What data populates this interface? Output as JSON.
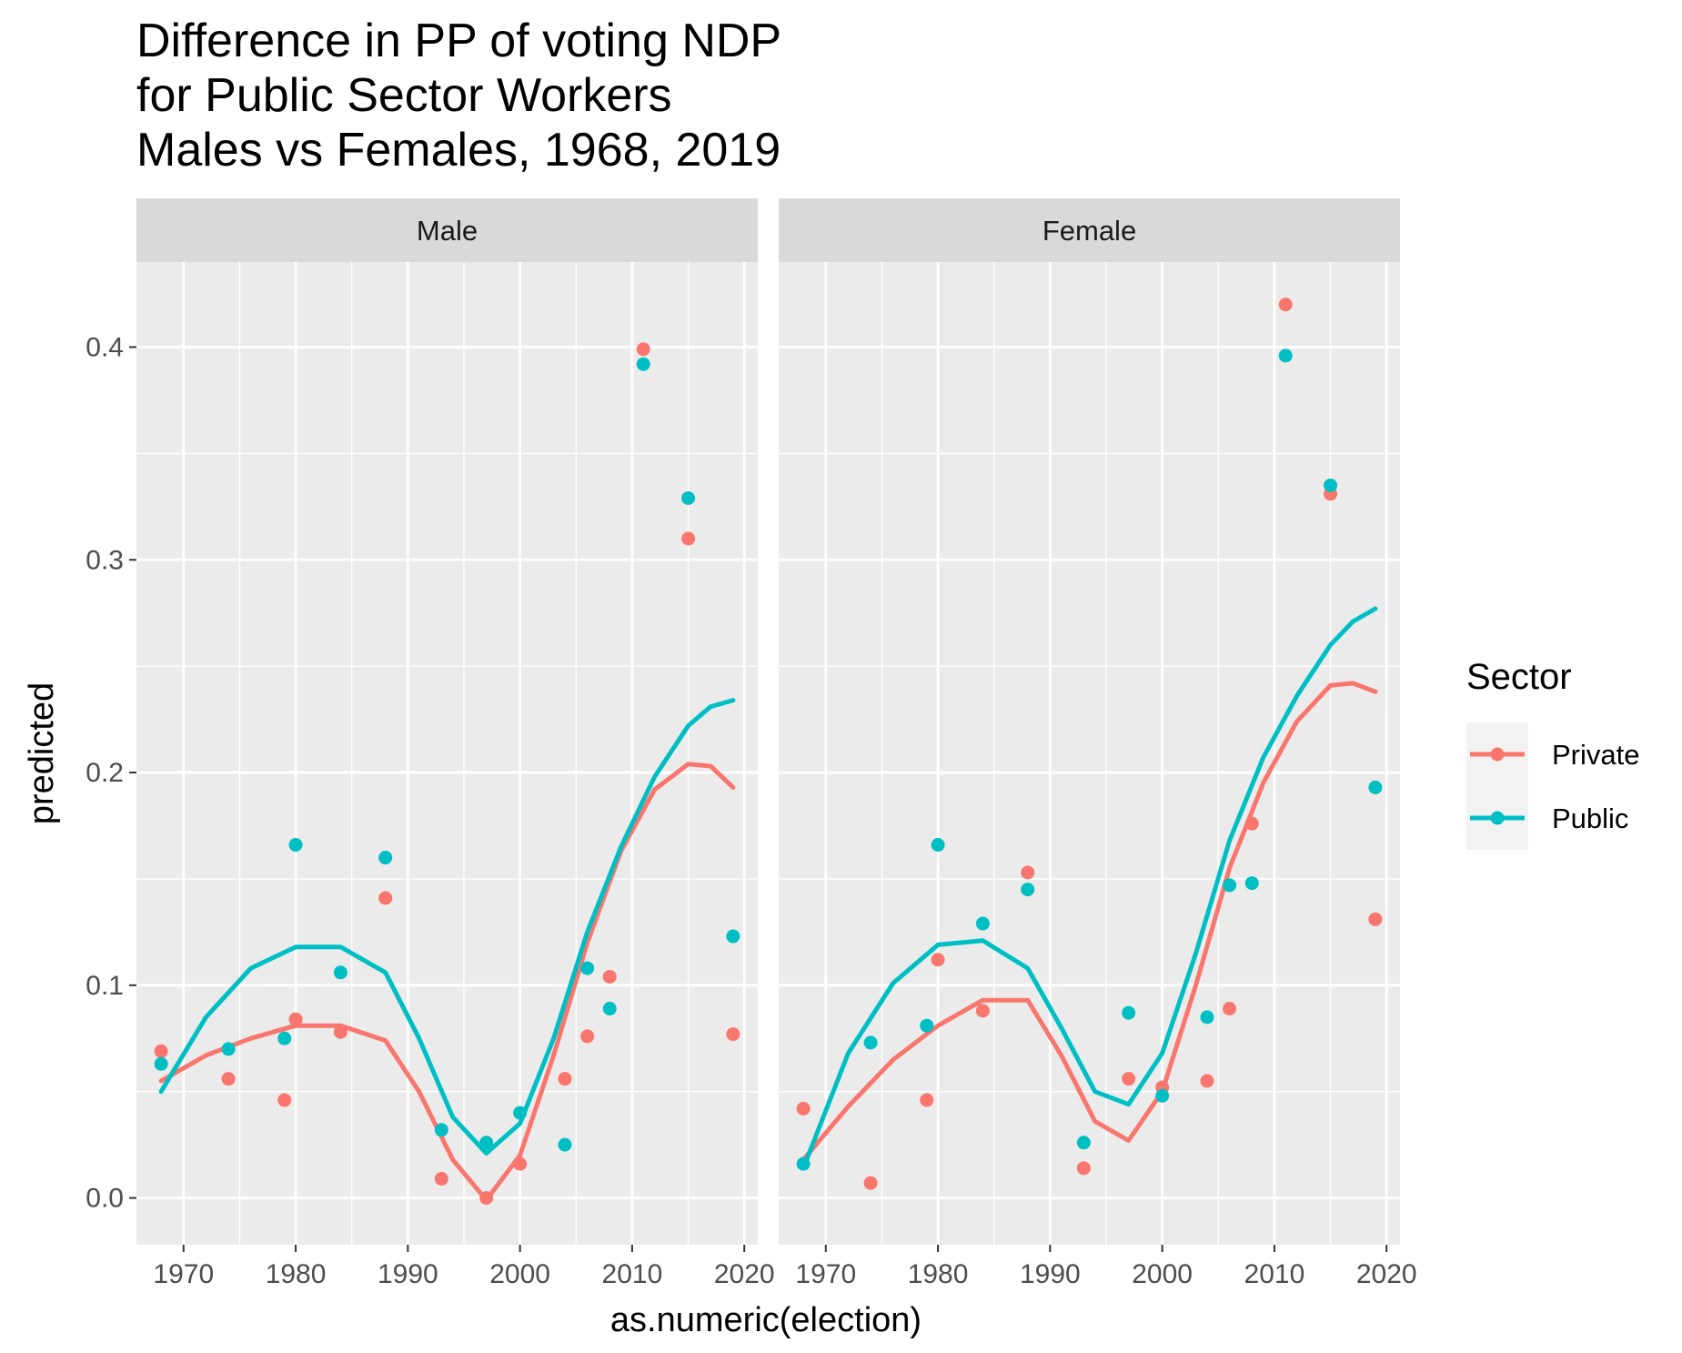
{
  "chart_data": {
    "type": "scatter",
    "title_lines": [
      "Difference in PP of voting NDP",
      "for Public Sector Workers",
      "Males vs Females, 1968, 2019"
    ],
    "xlabel": "as.numeric(election)",
    "ylabel": "predicted",
    "xlim": [
      1965.8,
      2021.2
    ],
    "ylim": [
      -0.022,
      0.44
    ],
    "x_ticks": [
      1970,
      1980,
      1990,
      2000,
      2010,
      2020
    ],
    "x_tick_labels": [
      "1970",
      "1980",
      "1990",
      "2000",
      "2010",
      "2020"
    ],
    "y_ticks": [
      0.0,
      0.1,
      0.2,
      0.3,
      0.4
    ],
    "y_tick_labels": [
      "0.0",
      "0.1",
      "0.2",
      "0.3",
      "0.4"
    ],
    "grid": true,
    "legend": {
      "title": "Sector",
      "position": "right",
      "entries": [
        "Private",
        "Public"
      ]
    },
    "colors": {
      "Private": "#F8766D",
      "Public": "#00BFC4"
    },
    "facets": [
      {
        "label": "Male",
        "series": [
          {
            "name": "Private",
            "points": [
              [
                1968,
                0.069
              ],
              [
                1974,
                0.056
              ],
              [
                1979,
                0.046
              ],
              [
                1980,
                0.084
              ],
              [
                1984,
                0.078
              ],
              [
                1988,
                0.141
              ],
              [
                1993,
                0.009
              ],
              [
                1997,
                0.0
              ],
              [
                2000,
                0.016
              ],
              [
                2004,
                0.056
              ],
              [
                2006,
                0.076
              ],
              [
                2008,
                0.104
              ],
              [
                2011,
                0.399
              ],
              [
                2015,
                0.31
              ],
              [
                2019,
                0.077
              ]
            ],
            "smooth": [
              [
                1968,
                0.055
              ],
              [
                1972,
                0.067
              ],
              [
                1976,
                0.075
              ],
              [
                1980,
                0.081
              ],
              [
                1984,
                0.081
              ],
              [
                1988,
                0.074
              ],
              [
                1991,
                0.05
              ],
              [
                1994,
                0.018
              ],
              [
                1997,
                -0.001
              ],
              [
                2000,
                0.02
              ],
              [
                2003,
                0.067
              ],
              [
                2006,
                0.12
              ],
              [
                2009,
                0.163
              ],
              [
                2012,
                0.192
              ],
              [
                2015,
                0.204
              ],
              [
                2017,
                0.203
              ],
              [
                2019,
                0.193
              ]
            ]
          },
          {
            "name": "Public",
            "points": [
              [
                1968,
                0.063
              ],
              [
                1974,
                0.07
              ],
              [
                1979,
                0.075
              ],
              [
                1980,
                0.166
              ],
              [
                1984,
                0.106
              ],
              [
                1988,
                0.16
              ],
              [
                1993,
                0.032
              ],
              [
                1997,
                0.026
              ],
              [
                2000,
                0.04
              ],
              [
                2004,
                0.025
              ],
              [
                2006,
                0.108
              ],
              [
                2008,
                0.089
              ],
              [
                2011,
                0.392
              ],
              [
                2015,
                0.329
              ],
              [
                2019,
                0.123
              ]
            ],
            "smooth": [
              [
                1968,
                0.05
              ],
              [
                1972,
                0.085
              ],
              [
                1976,
                0.108
              ],
              [
                1980,
                0.118
              ],
              [
                1984,
                0.118
              ],
              [
                1988,
                0.106
              ],
              [
                1991,
                0.075
              ],
              [
                1994,
                0.038
              ],
              [
                1997,
                0.021
              ],
              [
                2000,
                0.035
              ],
              [
                2003,
                0.075
              ],
              [
                2006,
                0.125
              ],
              [
                2009,
                0.165
              ],
              [
                2012,
                0.198
              ],
              [
                2015,
                0.222
              ],
              [
                2017,
                0.231
              ],
              [
                2019,
                0.234
              ]
            ]
          }
        ]
      },
      {
        "label": "Female",
        "series": [
          {
            "name": "Private",
            "points": [
              [
                1968,
                0.042
              ],
              [
                1974,
                0.007
              ],
              [
                1979,
                0.046
              ],
              [
                1980,
                0.112
              ],
              [
                1984,
                0.088
              ],
              [
                1988,
                0.153
              ],
              [
                1993,
                0.014
              ],
              [
                1997,
                0.056
              ],
              [
                2000,
                0.052
              ],
              [
                2004,
                0.055
              ],
              [
                2006,
                0.089
              ],
              [
                2008,
                0.176
              ],
              [
                2011,
                0.42
              ],
              [
                2015,
                0.331
              ],
              [
                2019,
                0.131
              ]
            ],
            "smooth": [
              [
                1968,
                0.018
              ],
              [
                1972,
                0.043
              ],
              [
                1976,
                0.065
              ],
              [
                1980,
                0.081
              ],
              [
                1984,
                0.093
              ],
              [
                1988,
                0.093
              ],
              [
                1991,
                0.067
              ],
              [
                1994,
                0.036
              ],
              [
                1997,
                0.027
              ],
              [
                2000,
                0.05
              ],
              [
                2003,
                0.1
              ],
              [
                2006,
                0.155
              ],
              [
                2009,
                0.195
              ],
              [
                2012,
                0.224
              ],
              [
                2015,
                0.241
              ],
              [
                2017,
                0.242
              ],
              [
                2019,
                0.238
              ]
            ]
          },
          {
            "name": "Public",
            "points": [
              [
                1968,
                0.016
              ],
              [
                1974,
                0.073
              ],
              [
                1979,
                0.081
              ],
              [
                1980,
                0.166
              ],
              [
                1984,
                0.129
              ],
              [
                1988,
                0.145
              ],
              [
                1993,
                0.026
              ],
              [
                1997,
                0.087
              ],
              [
                2000,
                0.048
              ],
              [
                2004,
                0.085
              ],
              [
                2006,
                0.147
              ],
              [
                2008,
                0.148
              ],
              [
                2011,
                0.396
              ],
              [
                2015,
                0.335
              ],
              [
                2019,
                0.193
              ]
            ],
            "smooth": [
              [
                1968,
                0.014
              ],
              [
                1972,
                0.068
              ],
              [
                1976,
                0.101
              ],
              [
                1980,
                0.119
              ],
              [
                1984,
                0.121
              ],
              [
                1988,
                0.108
              ],
              [
                1991,
                0.08
              ],
              [
                1994,
                0.05
              ],
              [
                1997,
                0.044
              ],
              [
                2000,
                0.068
              ],
              [
                2003,
                0.115
              ],
              [
                2006,
                0.168
              ],
              [
                2009,
                0.207
              ],
              [
                2012,
                0.236
              ],
              [
                2015,
                0.26
              ],
              [
                2017,
                0.271
              ],
              [
                2019,
                0.277
              ]
            ]
          }
        ]
      }
    ]
  }
}
